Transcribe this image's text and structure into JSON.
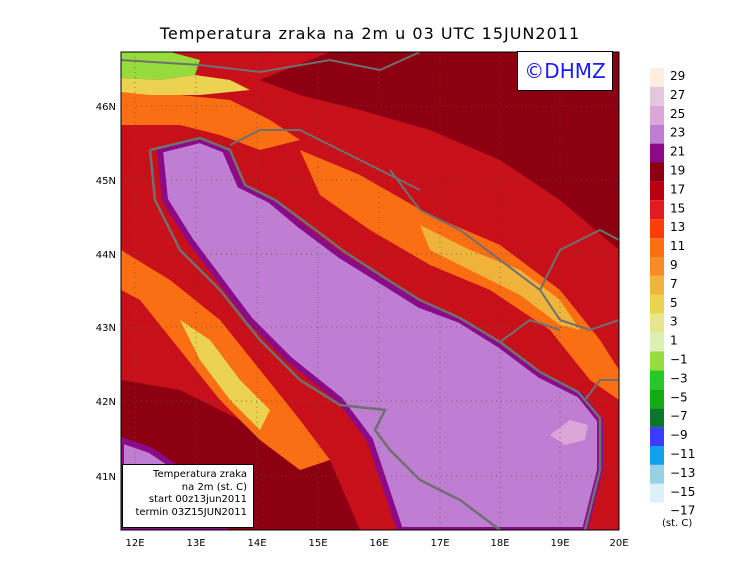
{
  "title": "Temperatura zraka na 2m u 03 UTC 15JUN2011",
  "logo": "©DHMZ",
  "info_box": {
    "line1": "Temperatura zraka",
    "line2": "na 2m (st. C)",
    "line3": "start 00z13jun2011",
    "line4": "termin 03Z15JUN2011"
  },
  "units": "(st. C)",
  "map": {
    "lon_labels": [
      "12E",
      "13E",
      "14E",
      "15E",
      "16E",
      "17E",
      "18E",
      "19E",
      "20E"
    ],
    "lat_labels": [
      "46N",
      "45N",
      "44N",
      "43N",
      "42N",
      "41N"
    ]
  },
  "colorbar": {
    "levels": [
      "29",
      "27",
      "25",
      "23",
      "21",
      "19",
      "17",
      "15",
      "13",
      "11",
      "9",
      "7",
      "5",
      "3",
      "1",
      "−1",
      "−3",
      "−5",
      "−7",
      "−9",
      "−11",
      "−13",
      "−15",
      "−17"
    ],
    "colors": [
      "#fdeee0",
      "#e6c6dc",
      "#dca6d8",
      "#c07ed2",
      "#8a0a8a",
      "#8c0012",
      "#b80010",
      "#e21c1c",
      "#fa3c0a",
      "#fa6e14",
      "#f58c28",
      "#f0b43c",
      "#ebd250",
      "#e6e68c",
      "#dcf0b4",
      "#96dc3c",
      "#28c828",
      "#14aa14",
      "#0a7828",
      "#3c3cff",
      "#14a0e6",
      "#96d2e6",
      "#dcf0f8",
      "#ffffff"
    ]
  }
}
